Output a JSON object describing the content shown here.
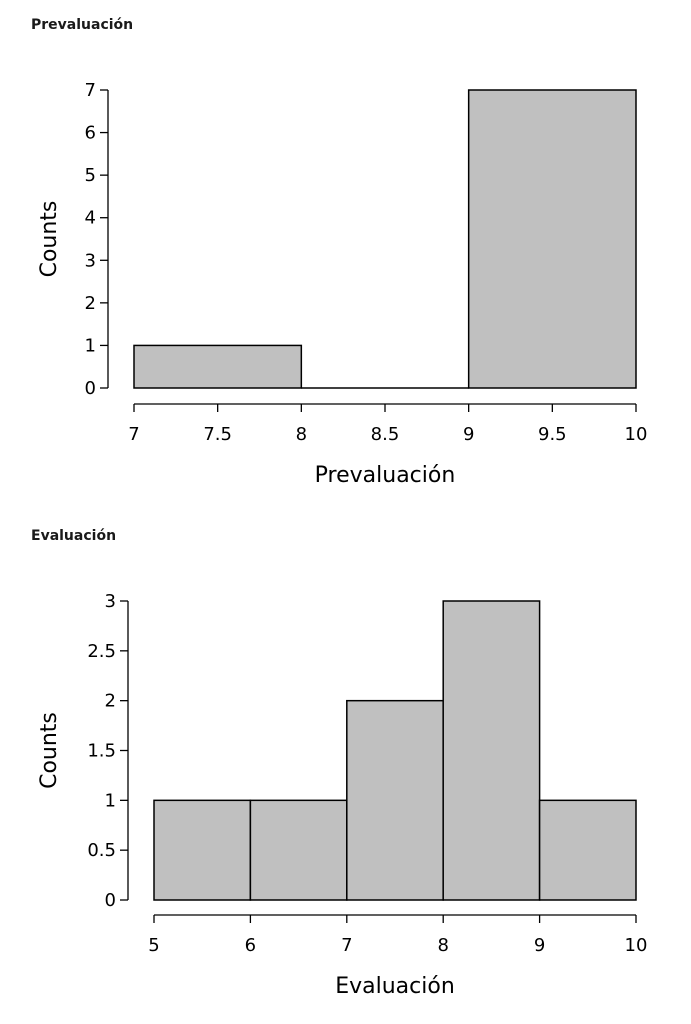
{
  "chart_data": [
    {
      "type": "bar",
      "title": "Prevaluación",
      "xlabel": "Prevaluación",
      "ylabel": "Counts",
      "bins": [
        {
          "start": 7,
          "end": 8,
          "count": 1
        },
        {
          "start": 8,
          "end": 9,
          "count": 0
        },
        {
          "start": 9,
          "end": 10,
          "count": 7
        }
      ],
      "xticks": [
        7,
        7.5,
        8,
        8.5,
        9,
        9.5,
        10
      ],
      "xtick_labels": [
        "7",
        "7.5",
        "8",
        "8.5",
        "9",
        "9.5",
        "10"
      ],
      "yticks": [
        0,
        1,
        2,
        3,
        4,
        5,
        6,
        7
      ],
      "ytick_labels": [
        "0",
        "1",
        "2",
        "3",
        "4",
        "5",
        "6",
        "7"
      ],
      "xlim": [
        7,
        10
      ],
      "ylim": [
        0,
        7
      ],
      "bar_color": "#c0c0c0"
    },
    {
      "type": "bar",
      "title": "Evaluación",
      "xlabel": "Evaluación",
      "ylabel": "Counts",
      "bins": [
        {
          "start": 5,
          "end": 6,
          "count": 1
        },
        {
          "start": 6,
          "end": 7,
          "count": 1
        },
        {
          "start": 7,
          "end": 8,
          "count": 2
        },
        {
          "start": 8,
          "end": 9,
          "count": 3
        },
        {
          "start": 9,
          "end": 10,
          "count": 1
        }
      ],
      "xticks": [
        5,
        6,
        7,
        8,
        9,
        10
      ],
      "xtick_labels": [
        "5",
        "6",
        "7",
        "8",
        "9",
        "10"
      ],
      "yticks": [
        0,
        0.5,
        1,
        1.5,
        2,
        2.5,
        3
      ],
      "ytick_labels": [
        "0",
        "0.5",
        "1",
        "1.5",
        "2",
        "2.5",
        "3"
      ],
      "xlim": [
        5,
        10
      ],
      "ylim": [
        0,
        3
      ],
      "bar_color": "#c0c0c0"
    }
  ]
}
